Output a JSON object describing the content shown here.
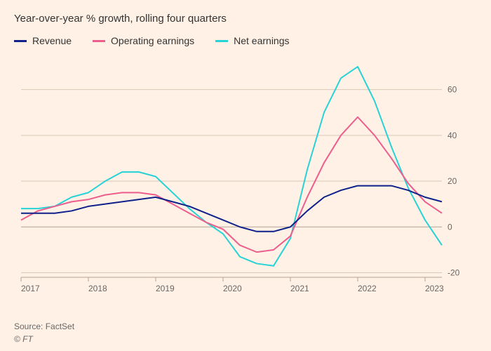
{
  "subtitle": "Year-over-year % growth, rolling four quarters",
  "source": "Source: FactSet",
  "copyright": "© FT",
  "legend": [
    {
      "label": "Revenue",
      "color": "#0f218b"
    },
    {
      "label": "Operating earnings",
      "color": "#eb5e8d"
    },
    {
      "label": "Net earnings",
      "color": "#28d2d6"
    }
  ],
  "chart": {
    "type": "line",
    "background_color": "#fff1e5",
    "grid_color": "#d9c8b8",
    "baseline_color": "#b3a393",
    "text_color": "#666666",
    "line_width": 2,
    "x_axis": {
      "years": [
        2017,
        2018,
        2019,
        2020,
        2021,
        2022,
        2023
      ],
      "range": [
        2017,
        2023.25
      ]
    },
    "y_axis": {
      "ticks": [
        -20,
        0,
        20,
        40,
        60
      ],
      "range": [
        -22,
        70
      ]
    },
    "series": {
      "revenue": {
        "color": "#0f218b",
        "points": [
          [
            2017.0,
            6
          ],
          [
            2017.25,
            6
          ],
          [
            2017.5,
            6
          ],
          [
            2017.75,
            7
          ],
          [
            2018.0,
            9
          ],
          [
            2018.25,
            10
          ],
          [
            2018.5,
            11
          ],
          [
            2018.75,
            12
          ],
          [
            2019.0,
            13
          ],
          [
            2019.25,
            11
          ],
          [
            2019.5,
            9
          ],
          [
            2019.75,
            6
          ],
          [
            2020.0,
            3
          ],
          [
            2020.25,
            0
          ],
          [
            2020.5,
            -2
          ],
          [
            2020.75,
            -2
          ],
          [
            2021.0,
            0
          ],
          [
            2021.25,
            7
          ],
          [
            2021.5,
            13
          ],
          [
            2021.75,
            16
          ],
          [
            2022.0,
            18
          ],
          [
            2022.25,
            18
          ],
          [
            2022.5,
            18
          ],
          [
            2022.75,
            16
          ],
          [
            2023.0,
            13
          ],
          [
            2023.25,
            11
          ]
        ]
      },
      "operating_earnings": {
        "color": "#eb5e8d",
        "points": [
          [
            2017.0,
            3
          ],
          [
            2017.25,
            7
          ],
          [
            2017.5,
            9
          ],
          [
            2017.75,
            11
          ],
          [
            2018.0,
            12
          ],
          [
            2018.25,
            14
          ],
          [
            2018.5,
            15
          ],
          [
            2018.75,
            15
          ],
          [
            2019.0,
            14
          ],
          [
            2019.25,
            10
          ],
          [
            2019.5,
            6
          ],
          [
            2019.75,
            2
          ],
          [
            2020.0,
            -1
          ],
          [
            2020.25,
            -8
          ],
          [
            2020.5,
            -11
          ],
          [
            2020.75,
            -10
          ],
          [
            2021.0,
            -4
          ],
          [
            2021.25,
            13
          ],
          [
            2021.5,
            28
          ],
          [
            2021.75,
            40
          ],
          [
            2022.0,
            48
          ],
          [
            2022.25,
            40
          ],
          [
            2022.5,
            30
          ],
          [
            2022.75,
            19
          ],
          [
            2023.0,
            11
          ],
          [
            2023.25,
            6
          ]
        ]
      },
      "net_earnings": {
        "color": "#28d2d6",
        "points": [
          [
            2017.0,
            8
          ],
          [
            2017.25,
            8
          ],
          [
            2017.5,
            9
          ],
          [
            2017.75,
            13
          ],
          [
            2018.0,
            15
          ],
          [
            2018.25,
            20
          ],
          [
            2018.5,
            24
          ],
          [
            2018.75,
            24
          ],
          [
            2019.0,
            22
          ],
          [
            2019.25,
            15
          ],
          [
            2019.5,
            8
          ],
          [
            2019.75,
            2
          ],
          [
            2020.0,
            -3
          ],
          [
            2020.25,
            -13
          ],
          [
            2020.5,
            -16
          ],
          [
            2020.75,
            -17
          ],
          [
            2021.0,
            -5
          ],
          [
            2021.25,
            25
          ],
          [
            2021.5,
            50
          ],
          [
            2021.75,
            65
          ],
          [
            2022.0,
            70
          ],
          [
            2022.25,
            55
          ],
          [
            2022.5,
            35
          ],
          [
            2022.75,
            17
          ],
          [
            2023.0,
            3
          ],
          [
            2023.25,
            -8
          ]
        ]
      }
    }
  }
}
